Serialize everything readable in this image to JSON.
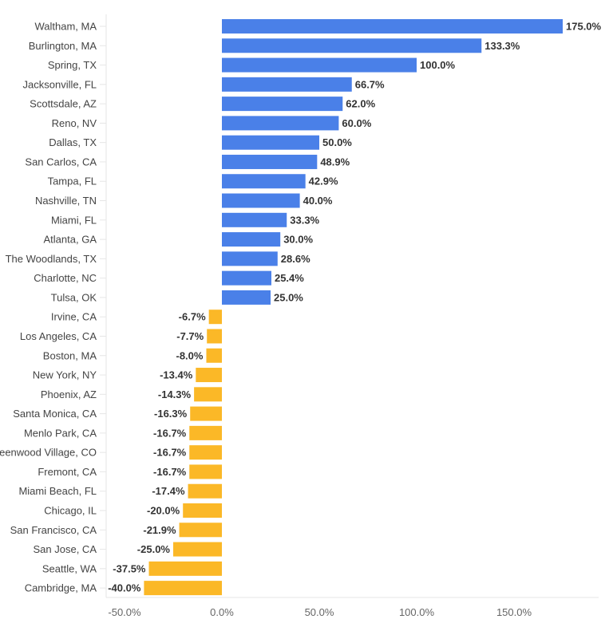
{
  "chart_data": {
    "type": "bar",
    "orientation": "horizontal",
    "title": "",
    "xlabel": "",
    "ylabel": "",
    "xlim": [
      -60,
      190
    ],
    "xticks": [
      -50,
      0,
      50,
      100,
      150
    ],
    "xtick_labels": [
      "-50.0%",
      "0.0%",
      "50.0%",
      "100.0%",
      "150.0%"
    ],
    "grid": false,
    "colors": {
      "positive": "#4a80e8",
      "negative": "#fbb827"
    },
    "categories": [
      "Waltham, MA",
      "Burlington, MA",
      "Spring, TX",
      "Jacksonville, FL",
      "Scottsdale, AZ",
      "Reno, NV",
      "Dallas, TX",
      "San Carlos, CA",
      "Tampa, FL",
      "Nashville, TN",
      "Miami, FL",
      "Atlanta, GA",
      "The Woodlands, TX",
      "Charlotte, NC",
      "Tulsa, OK",
      "Irvine, CA",
      "Los Angeles, CA",
      "Boston, MA",
      "New York, NY",
      "Phoenix, AZ",
      "Santa Monica, CA",
      "Menlo Park, CA",
      "reenwood Village, CO",
      "Fremont, CA",
      "Miami Beach, FL",
      "Chicago, IL",
      "San Francisco, CA",
      "San Jose, CA",
      "Seattle, WA",
      "Cambridge, MA"
    ],
    "values": [
      175.0,
      133.3,
      100.0,
      66.7,
      62.0,
      60.0,
      50.0,
      48.9,
      42.9,
      40.0,
      33.3,
      30.0,
      28.6,
      25.4,
      25.0,
      -6.7,
      -7.7,
      -8.0,
      -13.4,
      -14.3,
      -16.3,
      -16.7,
      -16.7,
      -16.7,
      -17.4,
      -20.0,
      -21.9,
      -25.0,
      -37.5,
      -40.0
    ],
    "value_labels": [
      "175.0%",
      "133.3%",
      "100.0%",
      "66.7%",
      "62.0%",
      "60.0%",
      "50.0%",
      "48.9%",
      "42.9%",
      "40.0%",
      "33.3%",
      "30.0%",
      "28.6%",
      "25.4%",
      "25.0%",
      "-6.7%",
      "-7.7%",
      "-8.0%",
      "-13.4%",
      "-14.3%",
      "-16.3%",
      "-16.7%",
      "-16.7%",
      "-16.7%",
      "-17.4%",
      "-20.0%",
      "-21.9%",
      "-25.0%",
      "-37.5%",
      "-40.0%"
    ]
  }
}
